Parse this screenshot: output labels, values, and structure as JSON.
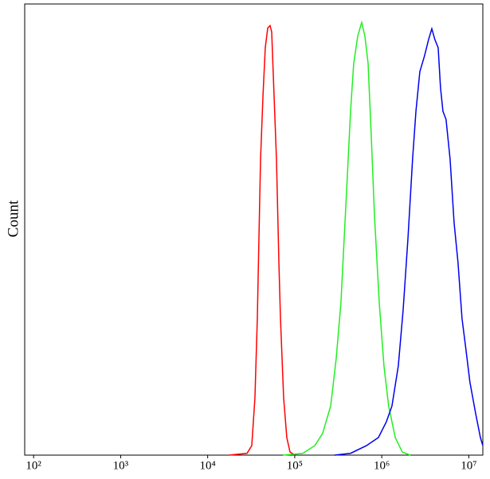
{
  "chart_data": {
    "type": "line",
    "ylabel": "Count",
    "xscale": "log",
    "xlim": [
      79,
      14500000
    ],
    "ylim": [
      0,
      100
    ],
    "xticks": [
      {
        "value": 100,
        "label": "10²"
      },
      {
        "value": 1000,
        "label": "10³"
      },
      {
        "value": 10000,
        "label": "10⁴"
      },
      {
        "value": 100000,
        "label": "10⁵"
      },
      {
        "value": 1000000,
        "label": "10⁶"
      },
      {
        "value": 10000000,
        "label": "10⁷"
      }
    ],
    "series": [
      {
        "color": "#ff0000",
        "x": [
          17500,
          28300,
          32100,
          34900,
          37200,
          38800,
          40500,
          43200,
          45900,
          49000,
          52100,
          54400,
          57900,
          61700,
          65800,
          68600,
          74600,
          81100,
          88300,
          100000
        ],
        "values": [
          0,
          0.4,
          2.1,
          12.7,
          30.3,
          48.0,
          65.6,
          79.7,
          90.3,
          94.7,
          95.2,
          93.8,
          79.7,
          65.6,
          42.7,
          30.3,
          12.7,
          3.9,
          0.7,
          0
        ]
      },
      {
        "color": "#22ee22",
        "x": [
          73100,
          124000,
          170000,
          209000,
          259000,
          300000,
          340000,
          370000,
          403000,
          438000,
          476000,
          530000,
          588000,
          640000,
          697000,
          757000,
          824000,
          935000,
          1060000,
          1200000,
          1430000,
          1720000,
          2130000
        ],
        "values": [
          0,
          0.4,
          2.1,
          4.8,
          10.9,
          21.5,
          33.9,
          48.0,
          62.1,
          76.2,
          86.8,
          92.9,
          95.9,
          92.9,
          86.8,
          70.9,
          53.3,
          33.9,
          19.8,
          10.9,
          3.9,
          0.7,
          0
        ]
      },
      {
        "color": "#0000ee",
        "x": [
          287000,
          438000,
          667000,
          916000,
          1130000,
          1310000,
          1550000,
          1760000,
          2000000,
          2260000,
          2470000,
          2740000,
          3100000,
          3450000,
          3760000,
          4080000,
          4450000,
          4730000,
          5050000,
          5480000,
          6100000,
          6780000,
          7520000,
          8360000,
          9290000,
          10300000,
          12000000,
          13600000,
          14500000
        ],
        "values": [
          0,
          0.4,
          2.1,
          3.9,
          7.4,
          10.9,
          19.8,
          32.1,
          48.0,
          65.6,
          76.2,
          85.0,
          88.5,
          92.1,
          94.5,
          92.1,
          90.3,
          81.5,
          76.2,
          74.4,
          65.6,
          51.5,
          42.7,
          30.3,
          23.3,
          16.2,
          9.2,
          3.9,
          2.1
        ]
      }
    ]
  }
}
